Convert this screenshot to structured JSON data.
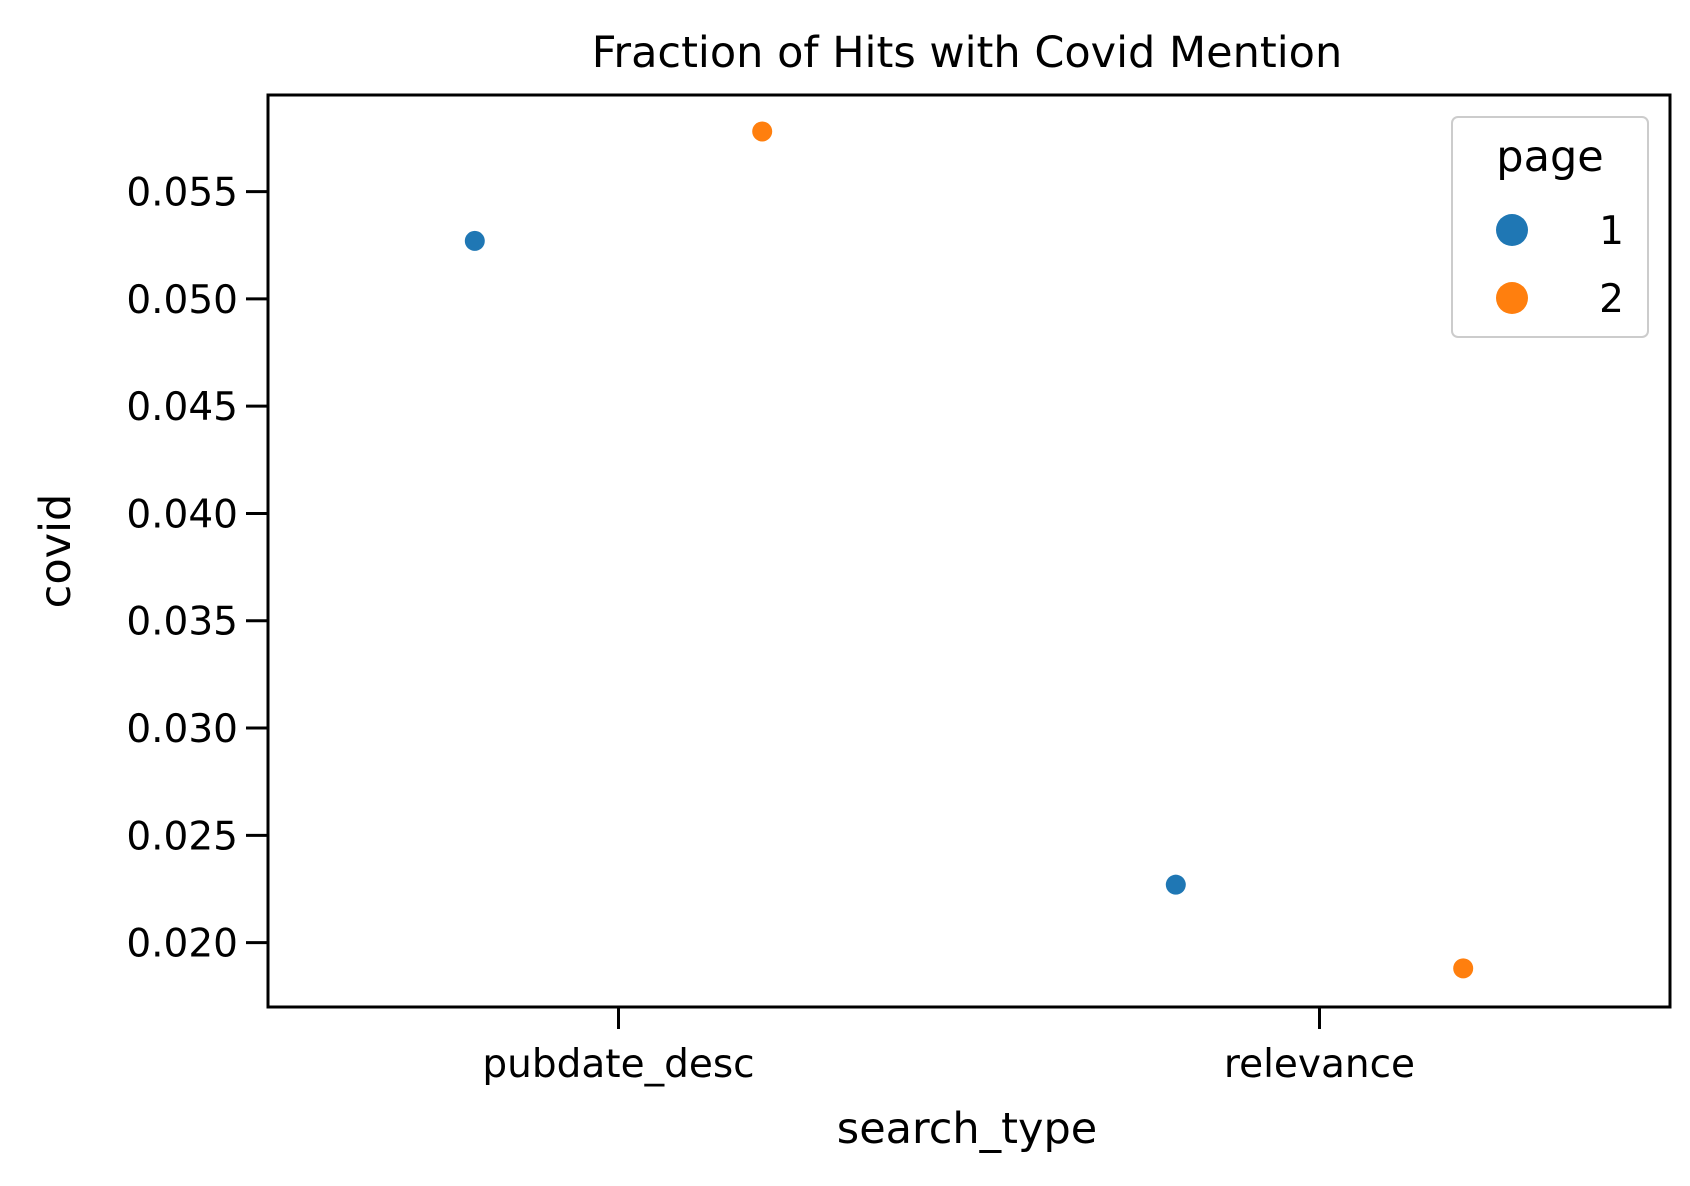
{
  "chart_data": {
    "type": "scatter",
    "title": "Fraction of Hits with Covid Mention",
    "xlabel": "search_type",
    "ylabel": "covid",
    "categories": [
      "pubdate_desc",
      "relevance"
    ],
    "ylim": [
      0.017,
      0.0595
    ],
    "yticks": [
      0.02,
      0.025,
      0.03,
      0.035,
      0.04,
      0.045,
      0.05,
      0.055
    ],
    "ytick_labels": [
      "0.020",
      "0.025",
      "0.030",
      "0.035",
      "0.040",
      "0.045",
      "0.050",
      "0.055"
    ],
    "grid": false,
    "legend": {
      "title": "page",
      "placement": "top-right",
      "entries": [
        {
          "label": "1",
          "color": "#1f77b4"
        },
        {
          "label": "2",
          "color": "#ff7f0e"
        }
      ]
    },
    "series": [
      {
        "name": "1",
        "color": "#1f77b4",
        "values": [
          0.0527,
          0.0227
        ]
      },
      {
        "name": "2",
        "color": "#ff7f0e",
        "values": [
          0.0578,
          0.0188
        ]
      }
    ]
  }
}
